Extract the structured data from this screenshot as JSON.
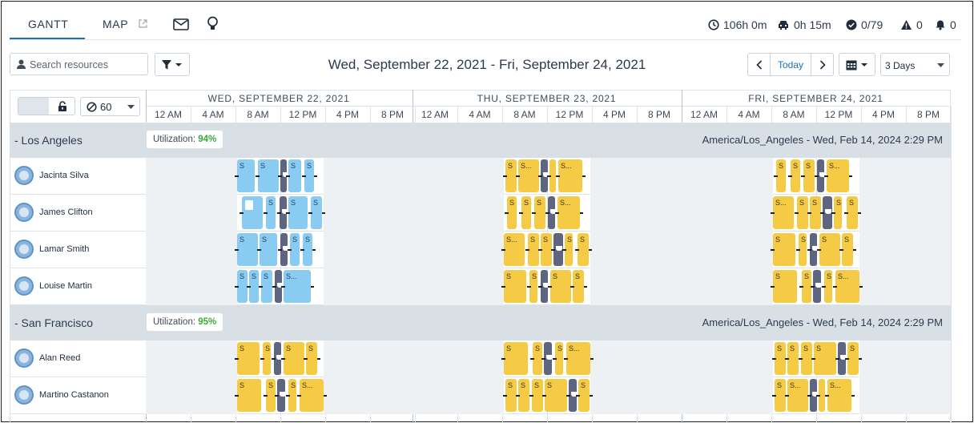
{
  "tabs": {
    "gantt": "GANTT",
    "map": "MAP"
  },
  "stats": {
    "hours": "106h 0m",
    "travel": "0h 15m",
    "completed": "0/79",
    "warnings": "0",
    "alerts": "0"
  },
  "toolbar": {
    "search_placeholder": "Search resources",
    "date_range": "Wed, September 22, 2021 - Fri, September 24, 2021",
    "today": "Today",
    "range_select": "3 Days",
    "interval": "60"
  },
  "days": [
    "WED, SEPTEMBER 22, 2021",
    "THU, SEPTEMBER 23, 2021",
    "FRI, SEPTEMBER 24, 2021"
  ],
  "hours": [
    "12 AM",
    "4 AM",
    "8 AM",
    "12 PM",
    "4 PM",
    "8 PM"
  ],
  "groups": [
    {
      "name": "- Los Angeles",
      "utilization_label": "Utilization:",
      "utilization": "94%",
      "timezone": "America/Los_Angeles - Wed, Feb 14, 2024 2:29 PM",
      "resources": [
        "Jacinta Silva",
        "James Clifton",
        "Lamar Smith",
        "Louise Martin"
      ]
    },
    {
      "name": "- San Francisco",
      "utilization_label": "Utilization:",
      "utilization": "95%",
      "timezone": "America/Los_Angeles - Wed, Feb 14, 2024 2:29 PM",
      "resources": [
        "Alan Reed",
        "Martino Castanon"
      ]
    }
  ],
  "block_labels": {
    "short": "S",
    "medium": "S..."
  },
  "colors": {
    "accent": "#1b6fb8",
    "appointment_yellow": "#f5cb45",
    "appointment_blue": "#8acbf2",
    "break_dark": "#5d6580",
    "utilization_green": "#3bab3b",
    "group_bg": "#d8e0e6"
  }
}
